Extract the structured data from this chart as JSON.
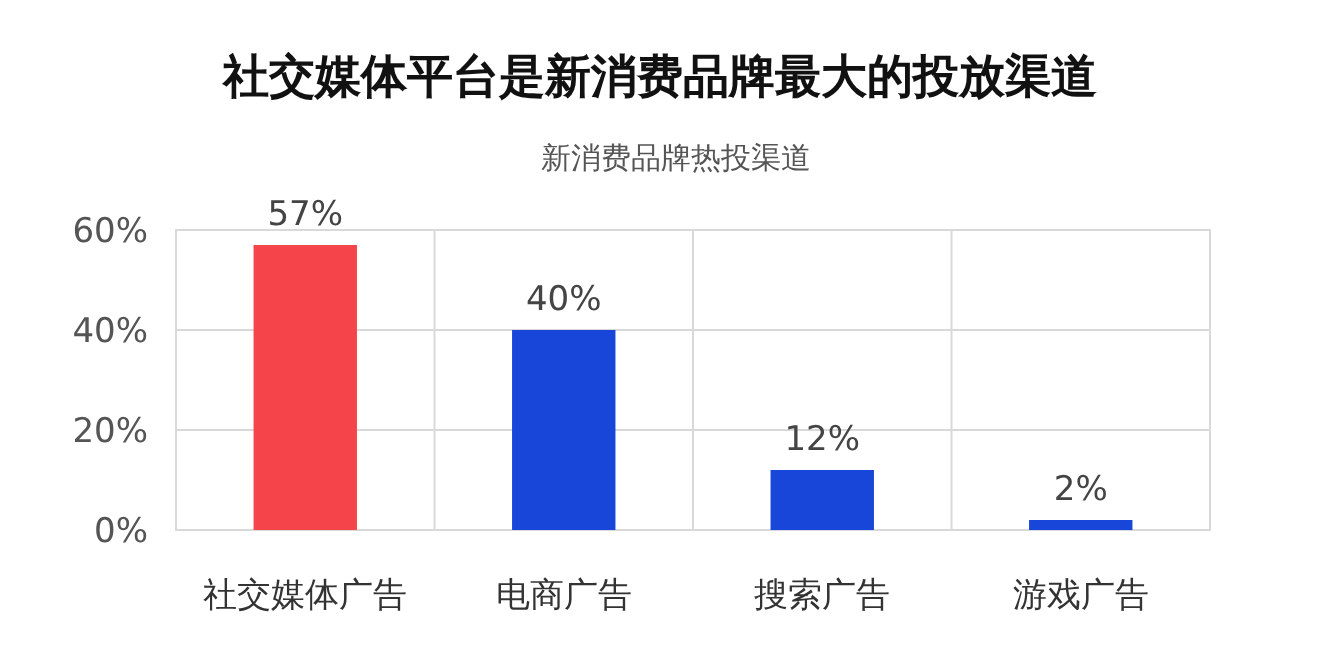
{
  "chart_data": {
    "type": "bar",
    "title": "社交媒体平台是新消费品牌最大的投放渠道",
    "subtitle": "新消费品牌热投渠道",
    "categories": [
      "社交媒体广告",
      "电商广告",
      "搜索广告",
      "游戏广告"
    ],
    "values": [
      57,
      40,
      12,
      2
    ],
    "colors": [
      "#f5444a",
      "#1846d8",
      "#1846d8",
      "#1846d8"
    ],
    "value_labels": [
      "57%",
      "40%",
      "12%",
      "2%"
    ],
    "ylim": [
      0,
      60
    ],
    "yticks": [
      {
        "value": 0,
        "label": "0%"
      },
      {
        "value": 20,
        "label": "20%"
      },
      {
        "value": 40,
        "label": "40%"
      },
      {
        "value": 60,
        "label": "60%"
      }
    ],
    "grid": true
  }
}
